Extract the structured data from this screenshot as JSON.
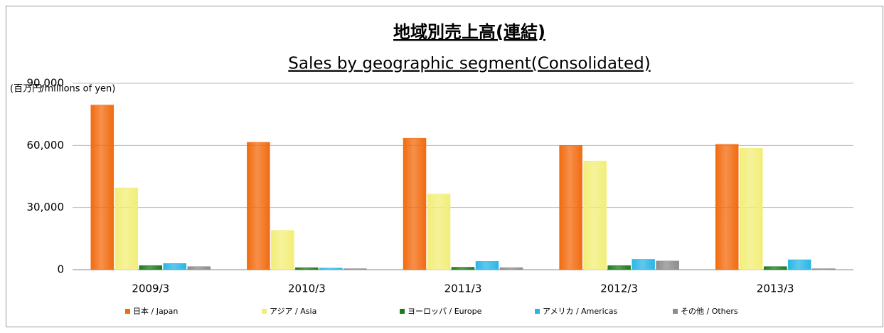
{
  "chart_data": {
    "type": "bar",
    "title": "地域別売上高(連結)",
    "subtitle": "Sales by geographic segment(Consolidated)",
    "y_label": "(百万円/millions of yen)",
    "categories": [
      "2009/3",
      "2010/3",
      "2011/3",
      "2012/3",
      "2013/3"
    ],
    "series": [
      {
        "name": "日本 / Japan",
        "color": "#f26b0f",
        "values": [
          79500,
          61500,
          63500,
          60000,
          60500
        ]
      },
      {
        "name": "アジア / Asia",
        "color": "#f2ee78",
        "values": [
          39500,
          19000,
          36500,
          52500,
          58700
        ]
      },
      {
        "name": "ヨーロッパ / Europe",
        "color": "#1e7a1e",
        "values": [
          2000,
          1000,
          1200,
          2000,
          1500
        ]
      },
      {
        "name": "アメリカ / Americas",
        "color": "#29b6e6",
        "values": [
          3000,
          800,
          4000,
          5000,
          4800
        ]
      },
      {
        "name": "その他 / Others",
        "color": "#8c8c8c",
        "values": [
          1500,
          500,
          1000,
          4200,
          500
        ]
      }
    ],
    "ylim": [
      0,
      90000
    ],
    "yticks": [
      0,
      {
        "value": 30000,
        "label": "30,000"
      },
      {
        "value": 60000,
        "label": "60,000"
      },
      {
        "value": 90000,
        "label": "90,000"
      }
    ],
    "grid": true,
    "legend": "bottom"
  }
}
